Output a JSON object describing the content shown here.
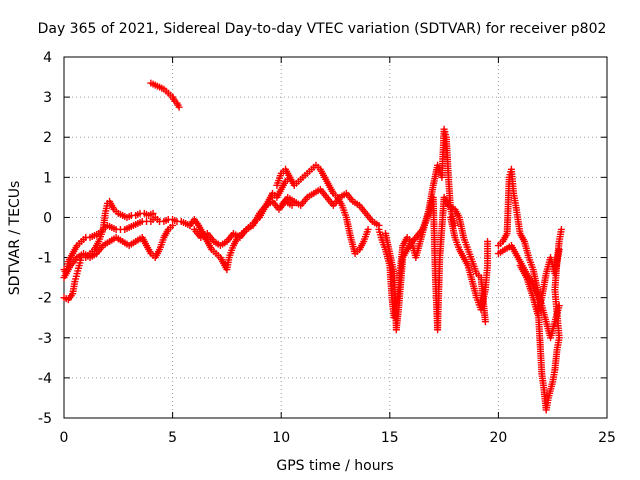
{
  "chart_data": {
    "type": "scatter",
    "title": "Day 365 of 2021, Sidereal Day-to-day VTEC variation (SDTVAR) for receiver p802",
    "xlabel": "GPS time / hours",
    "ylabel": "SDTVAR / TECUs",
    "xlim": [
      0,
      25
    ],
    "ylim": [
      -5,
      4
    ],
    "xticks": [
      0,
      5,
      10,
      15,
      20,
      25
    ],
    "yticks": [
      -5,
      -4,
      -3,
      -2,
      -1,
      0,
      1,
      2,
      3,
      4
    ],
    "grid": true,
    "legend": "none",
    "marker": "plus",
    "color": "#ff0000",
    "series": [
      {
        "name": "track-a",
        "points": [
          [
            0.0,
            -1.3
          ],
          [
            0.1,
            -1.4
          ],
          [
            0.2,
            -1.1
          ],
          [
            0.3,
            -1.0
          ],
          [
            0.4,
            -0.9
          ],
          [
            0.5,
            -0.8
          ],
          [
            0.6,
            -0.7
          ],
          [
            0.7,
            -0.65
          ],
          [
            0.8,
            -0.6
          ],
          [
            0.9,
            -0.55
          ],
          [
            1.0,
            -0.5
          ],
          [
            1.2,
            -0.5
          ],
          [
            1.4,
            -0.45
          ],
          [
            1.6,
            -0.4
          ],
          [
            1.8,
            -0.3
          ],
          [
            2.0,
            -0.2
          ],
          [
            2.2,
            -0.25
          ],
          [
            2.4,
            -0.3
          ],
          [
            2.6,
            -0.3
          ],
          [
            2.8,
            -0.3
          ],
          [
            3.0,
            -0.25
          ],
          [
            3.2,
            -0.2
          ],
          [
            3.4,
            -0.15
          ],
          [
            3.6,
            -0.1
          ],
          [
            3.8,
            -0.1
          ],
          [
            4.0,
            -0.1
          ],
          [
            4.2,
            0.0
          ],
          [
            4.4,
            -0.1
          ],
          [
            4.6,
            -0.1
          ],
          [
            4.8,
            -0.05
          ],
          [
            5.0,
            -0.05
          ],
          [
            5.2,
            -0.1
          ],
          [
            5.4,
            -0.1
          ],
          [
            5.6,
            -0.15
          ],
          [
            5.8,
            -0.2
          ]
        ]
      },
      {
        "name": "track-b",
        "points": [
          [
            0.0,
            -2.0
          ],
          [
            0.2,
            -2.05
          ],
          [
            0.4,
            -1.9
          ],
          [
            0.5,
            -1.6
          ],
          [
            0.6,
            -1.4
          ],
          [
            0.7,
            -1.2
          ],
          [
            0.8,
            -1.0
          ],
          [
            1.0,
            -1.0
          ],
          [
            1.2,
            -0.9
          ],
          [
            1.4,
            -0.8
          ],
          [
            1.6,
            -0.6
          ],
          [
            1.8,
            -0.3
          ],
          [
            1.9,
            0.1
          ],
          [
            2.0,
            0.35
          ],
          [
            2.1,
            0.4
          ],
          [
            2.3,
            0.2
          ],
          [
            2.5,
            0.1
          ],
          [
            2.7,
            0.05
          ],
          [
            2.9,
            0.0
          ],
          [
            3.1,
            0.05
          ],
          [
            3.3,
            0.05
          ],
          [
            3.5,
            0.1
          ],
          [
            3.7,
            0.1
          ],
          [
            3.9,
            0.05
          ],
          [
            4.1,
            0.1
          ]
        ]
      },
      {
        "name": "track-c",
        "points": [
          [
            0.0,
            -1.5
          ],
          [
            0.3,
            -1.2
          ],
          [
            0.6,
            -1.0
          ],
          [
            0.9,
            -0.9
          ],
          [
            1.2,
            -1.0
          ],
          [
            1.5,
            -0.9
          ],
          [
            1.8,
            -0.7
          ],
          [
            2.1,
            -0.6
          ],
          [
            2.4,
            -0.5
          ],
          [
            2.7,
            -0.6
          ],
          [
            3.0,
            -0.7
          ],
          [
            3.3,
            -0.6
          ],
          [
            3.6,
            -0.5
          ],
          [
            3.8,
            -0.7
          ],
          [
            4.0,
            -0.9
          ],
          [
            4.2,
            -1.0
          ],
          [
            4.4,
            -0.8
          ],
          [
            4.6,
            -0.5
          ],
          [
            4.8,
            -0.3
          ],
          [
            5.0,
            -0.2
          ]
        ]
      },
      {
        "name": "track-d",
        "points": [
          [
            4.0,
            3.35
          ],
          [
            4.2,
            3.3
          ],
          [
            4.4,
            3.25
          ],
          [
            4.6,
            3.2
          ],
          [
            4.8,
            3.1
          ],
          [
            5.0,
            3.0
          ],
          [
            5.1,
            2.9
          ],
          [
            5.2,
            2.85
          ],
          [
            5.3,
            2.75
          ]
        ]
      },
      {
        "name": "track-e",
        "points": [
          [
            5.8,
            -0.2
          ],
          [
            6.0,
            -0.05
          ],
          [
            6.2,
            -0.2
          ],
          [
            6.4,
            -0.4
          ],
          [
            6.6,
            -0.6
          ],
          [
            6.8,
            -0.8
          ],
          [
            7.0,
            -0.9
          ],
          [
            7.2,
            -1.0
          ],
          [
            7.4,
            -1.2
          ],
          [
            7.5,
            -1.3
          ],
          [
            7.6,
            -1.0
          ],
          [
            7.8,
            -0.7
          ],
          [
            8.0,
            -0.5
          ],
          [
            8.2,
            -0.4
          ],
          [
            8.4,
            -0.3
          ],
          [
            8.6,
            -0.2
          ],
          [
            8.8,
            -0.1
          ],
          [
            9.0,
            0.0
          ],
          [
            9.2,
            0.2
          ],
          [
            9.4,
            0.4
          ],
          [
            9.6,
            0.6
          ],
          [
            9.8,
            0.5
          ],
          [
            10.0,
            0.7
          ],
          [
            10.2,
            0.9
          ],
          [
            10.4,
            1.0
          ]
        ]
      },
      {
        "name": "track-f",
        "points": [
          [
            6.0,
            -0.3
          ],
          [
            6.3,
            -0.5
          ],
          [
            6.6,
            -0.4
          ],
          [
            6.9,
            -0.6
          ],
          [
            7.2,
            -0.7
          ],
          [
            7.5,
            -0.6
          ],
          [
            7.8,
            -0.4
          ],
          [
            8.1,
            -0.5
          ],
          [
            8.4,
            -0.3
          ],
          [
            8.7,
            -0.2
          ],
          [
            9.0,
            0.1
          ],
          [
            9.3,
            0.3
          ],
          [
            9.6,
            0.4
          ],
          [
            9.9,
            0.2
          ],
          [
            10.2,
            0.4
          ],
          [
            10.5,
            0.3
          ]
        ]
      },
      {
        "name": "track-g",
        "points": [
          [
            9.8,
            0.8
          ],
          [
            10.0,
            1.1
          ],
          [
            10.2,
            1.2
          ],
          [
            10.4,
            1.0
          ],
          [
            10.6,
            0.8
          ],
          [
            10.8,
            0.9
          ],
          [
            11.0,
            1.0
          ],
          [
            11.2,
            1.1
          ],
          [
            11.4,
            1.2
          ],
          [
            11.6,
            1.3
          ],
          [
            11.8,
            1.2
          ],
          [
            12.0,
            1.0
          ],
          [
            12.2,
            0.8
          ],
          [
            12.4,
            0.6
          ],
          [
            12.6,
            0.5
          ],
          [
            12.8,
            0.3
          ],
          [
            13.0,
            0.0
          ],
          [
            13.2,
            -0.5
          ],
          [
            13.4,
            -0.9
          ],
          [
            13.6,
            -0.8
          ],
          [
            13.8,
            -0.6
          ],
          [
            14.0,
            -0.3
          ]
        ]
      },
      {
        "name": "track-h",
        "points": [
          [
            10.0,
            0.3
          ],
          [
            10.3,
            0.5
          ],
          [
            10.6,
            0.4
          ],
          [
            10.9,
            0.3
          ],
          [
            11.2,
            0.5
          ],
          [
            11.5,
            0.6
          ],
          [
            11.8,
            0.7
          ],
          [
            12.1,
            0.5
          ],
          [
            12.4,
            0.3
          ],
          [
            12.7,
            0.5
          ],
          [
            13.0,
            0.6
          ],
          [
            13.3,
            0.4
          ],
          [
            13.6,
            0.3
          ],
          [
            13.9,
            0.1
          ],
          [
            14.2,
            -0.1
          ],
          [
            14.5,
            -0.2
          ]
        ]
      },
      {
        "name": "track-i",
        "points": [
          [
            14.5,
            -0.3
          ],
          [
            14.6,
            -0.5
          ],
          [
            14.8,
            -0.8
          ],
          [
            15.0,
            -1.2
          ],
          [
            15.1,
            -2.0
          ],
          [
            15.2,
            -2.5
          ],
          [
            15.3,
            -2.2
          ],
          [
            15.4,
            -1.8
          ],
          [
            15.5,
            -1.2
          ],
          [
            15.6,
            -0.7
          ],
          [
            15.8,
            -0.5
          ],
          [
            16.0,
            -0.6
          ],
          [
            16.2,
            -1.0
          ],
          [
            16.4,
            -0.6
          ],
          [
            16.6,
            -0.2
          ],
          [
            16.8,
            0.2
          ],
          [
            17.0,
            0.8
          ],
          [
            17.2,
            1.3
          ],
          [
            17.4,
            1.0
          ],
          [
            17.5,
            2.2
          ],
          [
            17.6,
            2.0
          ],
          [
            17.7,
            1.0
          ],
          [
            17.8,
            0.2
          ],
          [
            18.0,
            -0.2
          ]
        ]
      },
      {
        "name": "track-j",
        "points": [
          [
            14.8,
            -0.4
          ],
          [
            15.0,
            -0.9
          ],
          [
            15.2,
            -1.4
          ],
          [
            15.3,
            -2.8
          ],
          [
            15.4,
            -2.3
          ],
          [
            15.6,
            -1.0
          ],
          [
            15.9,
            -0.7
          ],
          [
            16.2,
            -0.5
          ],
          [
            16.5,
            -0.3
          ],
          [
            16.8,
            0.1
          ],
          [
            17.0,
            0.5
          ],
          [
            17.1,
            -1.5
          ],
          [
            17.2,
            -2.8
          ],
          [
            17.3,
            -1.0
          ],
          [
            17.5,
            0.5
          ],
          [
            17.7,
            0.3
          ],
          [
            18.0,
            0.2
          ],
          [
            18.2,
            0.0
          ],
          [
            18.4,
            -0.5
          ],
          [
            18.6,
            -0.8
          ],
          [
            18.8,
            -1.1
          ],
          [
            19.0,
            -1.4
          ],
          [
            19.2,
            -1.5
          ],
          [
            19.4,
            -2.6
          ]
        ]
      },
      {
        "name": "track-k",
        "points": [
          [
            17.8,
            0.0
          ],
          [
            18.0,
            -0.5
          ],
          [
            18.2,
            -0.8
          ],
          [
            18.4,
            -1.0
          ],
          [
            18.6,
            -1.2
          ],
          [
            18.8,
            -1.6
          ],
          [
            19.0,
            -2.0
          ],
          [
            19.2,
            -2.3
          ],
          [
            19.4,
            -1.8
          ],
          [
            19.5,
            -1.2
          ],
          [
            19.5,
            -0.6
          ]
        ]
      },
      {
        "name": "track-l",
        "points": [
          [
            20.0,
            -0.7
          ],
          [
            20.2,
            -0.6
          ],
          [
            20.4,
            -0.4
          ],
          [
            20.5,
            1.0
          ],
          [
            20.6,
            1.2
          ],
          [
            20.7,
            0.6
          ],
          [
            20.8,
            0.3
          ],
          [
            21.0,
            -0.4
          ],
          [
            21.2,
            -0.6
          ],
          [
            21.4,
            -1.0
          ],
          [
            21.6,
            -1.3
          ],
          [
            21.8,
            -1.8
          ],
          [
            22.0,
            -2.2
          ],
          [
            22.2,
            -2.6
          ],
          [
            22.4,
            -3.0
          ],
          [
            22.6,
            -2.6
          ],
          [
            22.8,
            -2.2
          ]
        ]
      },
      {
        "name": "track-m",
        "points": [
          [
            20.0,
            -0.9
          ],
          [
            20.3,
            -0.8
          ],
          [
            20.6,
            -0.7
          ],
          [
            20.9,
            -1.0
          ],
          [
            21.2,
            -1.3
          ],
          [
            21.5,
            -1.6
          ],
          [
            21.8,
            -2.0
          ],
          [
            22.0,
            -3.9
          ],
          [
            22.1,
            -4.3
          ],
          [
            22.2,
            -4.8
          ],
          [
            22.3,
            -4.5
          ],
          [
            22.5,
            -4.1
          ],
          [
            22.6,
            -3.8
          ],
          [
            22.7,
            -3.3
          ],
          [
            22.8,
            -3.0
          ],
          [
            22.7,
            -2.4
          ],
          [
            22.6,
            -1.8
          ],
          [
            22.7,
            -1.1
          ],
          [
            22.8,
            -0.6
          ],
          [
            22.9,
            -0.3
          ]
        ]
      },
      {
        "name": "track-n",
        "points": [
          [
            21.0,
            -1.2
          ],
          [
            21.3,
            -1.5
          ],
          [
            21.6,
            -2.0
          ],
          [
            21.8,
            -2.4
          ],
          [
            22.0,
            -2.0
          ],
          [
            22.2,
            -1.4
          ],
          [
            22.4,
            -1.0
          ],
          [
            22.6,
            -1.4
          ],
          [
            22.8,
            -0.8
          ]
        ]
      }
    ]
  }
}
